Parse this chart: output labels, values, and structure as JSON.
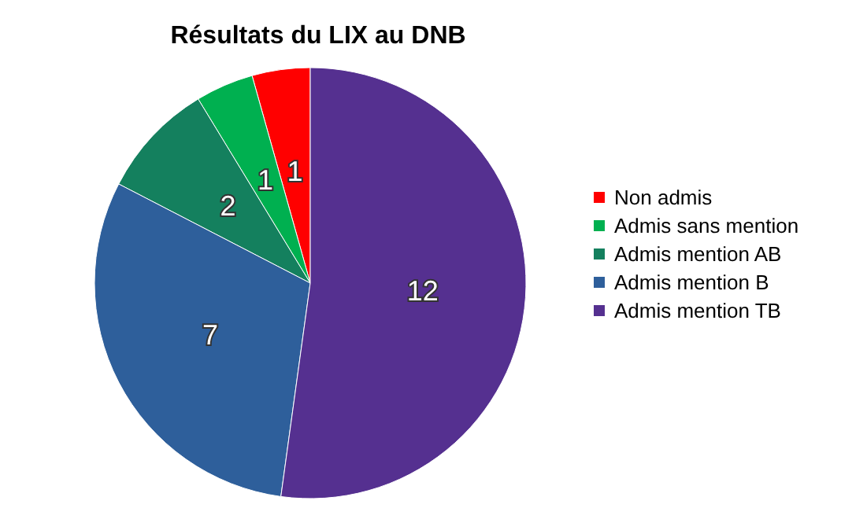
{
  "chart_data": {
    "type": "pie",
    "title": "Résultats du LIX au DNB",
    "categories": [
      "Non admis",
      "Admis sans mention",
      "Admis mention AB",
      "Admis mention B",
      "Admis mention TB"
    ],
    "values": [
      1,
      1,
      2,
      7,
      12
    ],
    "colors": [
      "#ff0000",
      "#00b050",
      "#14805e",
      "#2e5f9b",
      "#553090"
    ],
    "data_labels": true,
    "legend": "right"
  }
}
